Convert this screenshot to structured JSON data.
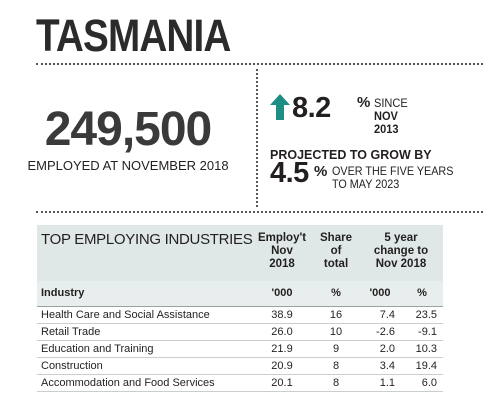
{
  "header": {
    "title": "TASMANIA"
  },
  "employment": {
    "value": "249,500",
    "label": "EMPLOYED AT NOVEMBER 2018"
  },
  "growth": {
    "value": "8.2",
    "unit": "%",
    "since_line1": "SINCE",
    "since_line2": "NOV 2013",
    "arrow_color": "#1e8d84"
  },
  "projection": {
    "label": "PROJECTED TO GROW BY",
    "value": "4.5",
    "unit": "%",
    "text_line1": "OVER THE FIVE YEARS",
    "text_line2": "TO MAY 2023"
  },
  "table": {
    "title": "TOP EMPLOYING INDUSTRIES",
    "headers": {
      "employ": [
        "Employ't",
        "Nov",
        "2018"
      ],
      "share": [
        "Share",
        "of",
        "total"
      ],
      "change": [
        "5 year",
        "change to",
        "Nov 2018"
      ]
    },
    "units": {
      "industry": "Industry",
      "employ": "'000",
      "share": "%",
      "change_abs": "'000",
      "change_pct": "%"
    },
    "rows": [
      {
        "industry": "Health Care and Social Assistance",
        "employ": "38.9",
        "share": "16",
        "change_abs": "7.4",
        "change_pct": "23.5"
      },
      {
        "industry": "Retail Trade",
        "employ": "26.0",
        "share": "10",
        "change_abs": "-2.6",
        "change_pct": "-9.1"
      },
      {
        "industry": "Education and Training",
        "employ": "21.9",
        "share": "9",
        "change_abs": "2.0",
        "change_pct": "10.3"
      },
      {
        "industry": "Construction",
        "employ": "20.9",
        "share": "8",
        "change_abs": "3.4",
        "change_pct": "19.4"
      },
      {
        "industry": "Accommodation and Food Services",
        "employ": "20.1",
        "share": "8",
        "change_abs": "1.1",
        "change_pct": "6.0"
      }
    ]
  }
}
